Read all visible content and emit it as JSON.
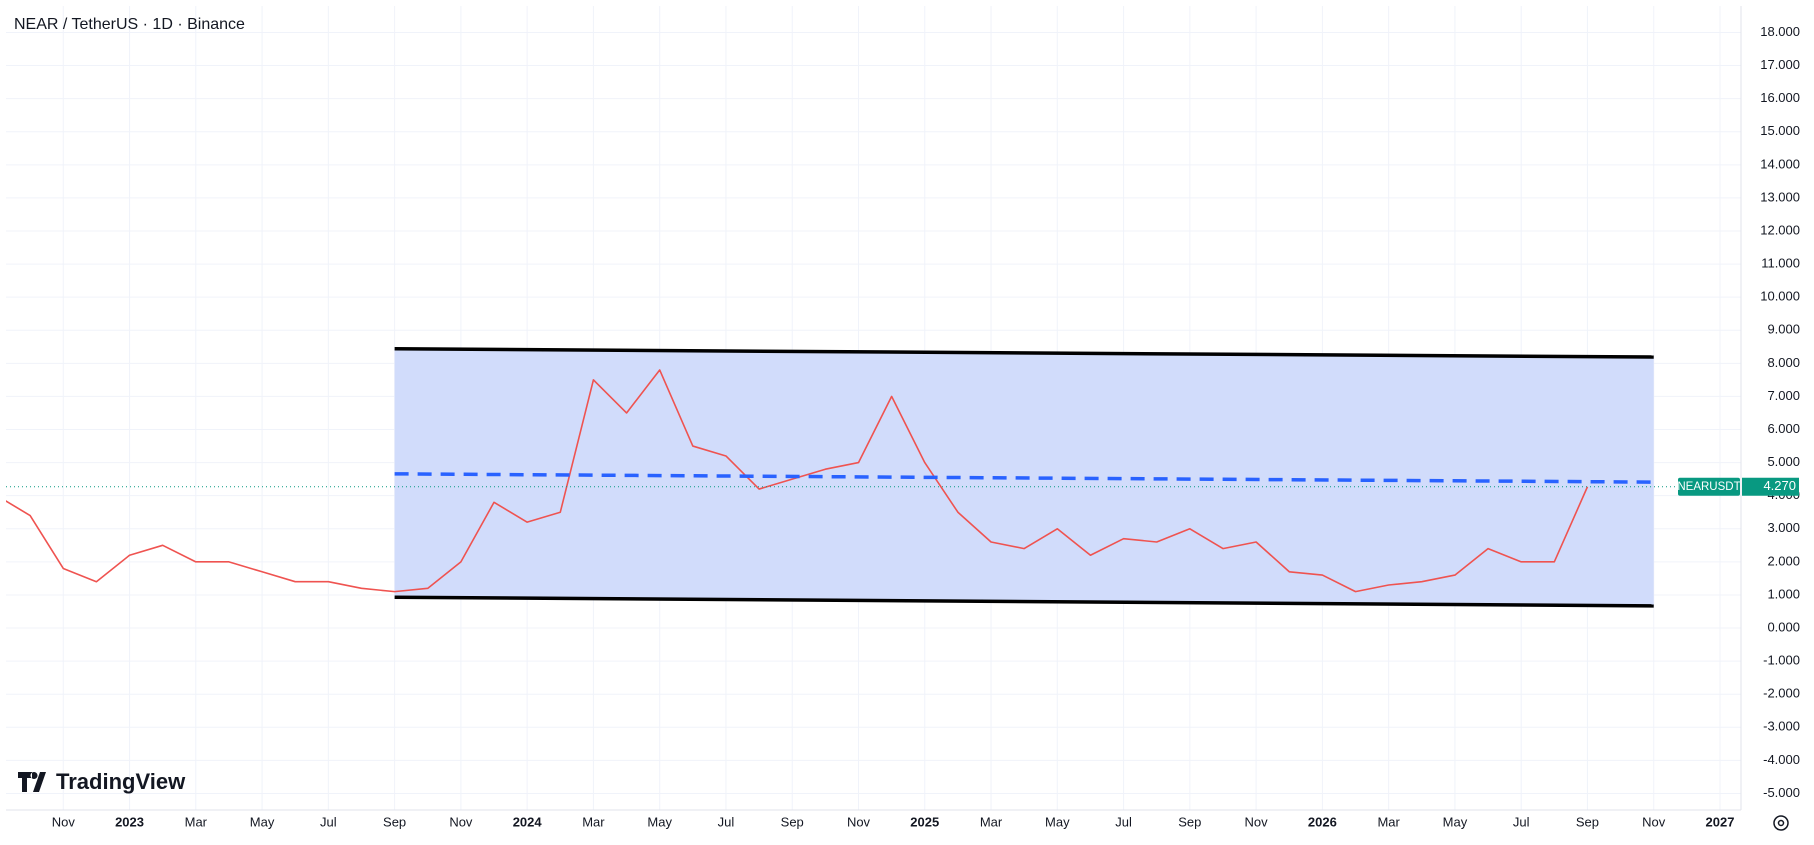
{
  "chart_data": {
    "type": "line",
    "title": "NEAR / TetherUS · 1D · Binance",
    "brand": "TradingView",
    "symbol": "NEARUSDT",
    "last_price": {
      "value": 4.27,
      "label": "4.270"
    },
    "x": [
      "2022-09",
      "2022-10",
      "2022-11",
      "2022-12",
      "2023-01",
      "2023-02",
      "2023-03",
      "2023-04",
      "2023-05",
      "2023-06",
      "2023-07",
      "2023-08",
      "2023-09",
      "2023-10",
      "2023-11",
      "2023-12",
      "2024-01",
      "2024-02",
      "2024-03",
      "2024-04",
      "2024-05",
      "2024-06",
      "2024-07",
      "2024-08",
      "2024-09",
      "2024-10",
      "2024-11",
      "2024-12",
      "2025-01",
      "2025-02",
      "2025-03",
      "2025-04",
      "2025-05",
      "2025-06",
      "2025-07",
      "2025-08",
      "2025-09",
      "2025-10",
      "2025-11",
      "2025-12",
      "2026-01",
      "2026-02",
      "2026-03",
      "2026-04",
      "2026-05",
      "2026-06",
      "2026-07",
      "2026-08",
      "2026-09"
    ],
    "series": [
      {
        "name": "NEARUSDT",
        "color": "#ef5350",
        "values": [
          4.0,
          3.4,
          1.8,
          1.4,
          2.2,
          2.5,
          2.0,
          2.0,
          1.7,
          1.4,
          1.4,
          1.2,
          1.1,
          1.2,
          2.0,
          3.8,
          3.2,
          3.5,
          7.5,
          6.5,
          7.8,
          5.5,
          5.2,
          4.2,
          4.5,
          4.8,
          5.0,
          7.0,
          5.0,
          3.5,
          2.6,
          2.4,
          3.0,
          2.2,
          2.7,
          2.6,
          3.0,
          2.4,
          2.6,
          1.7,
          1.6,
          1.1,
          1.3,
          1.4,
          1.6,
          2.4,
          2.0,
          2.0,
          4.27
        ]
      }
    ],
    "channel": {
      "x": [
        "2023-09",
        "2026-11"
      ],
      "upper": [
        8.44,
        8.19
      ],
      "middle": [
        4.66,
        4.41
      ],
      "lower": [
        0.93,
        0.67
      ],
      "fill": "#d1dcfb",
      "line_color": "#000000",
      "middle_color": "#2962ff"
    },
    "price_label_color": "#089981",
    "xlim": [
      "2022-09",
      "2027-01"
    ],
    "xticks": [
      {
        "value": "2022-11",
        "label": "Nov"
      },
      {
        "value": "2023-01",
        "label": "2023"
      },
      {
        "value": "2023-03",
        "label": "Mar"
      },
      {
        "value": "2023-05",
        "label": "May"
      },
      {
        "value": "2023-07",
        "label": "Jul"
      },
      {
        "value": "2023-09",
        "label": "Sep"
      },
      {
        "value": "2023-11",
        "label": "Nov"
      },
      {
        "value": "2024-01",
        "label": "2024"
      },
      {
        "value": "2024-03",
        "label": "Mar"
      },
      {
        "value": "2024-05",
        "label": "May"
      },
      {
        "value": "2024-07",
        "label": "Jul"
      },
      {
        "value": "2024-09",
        "label": "Sep"
      },
      {
        "value": "2024-11",
        "label": "Nov"
      },
      {
        "value": "2025-01",
        "label": "2025"
      },
      {
        "value": "2025-03",
        "label": "Mar"
      },
      {
        "value": "2025-05",
        "label": "May"
      },
      {
        "value": "2025-07",
        "label": "Jul"
      },
      {
        "value": "2025-09",
        "label": "Sep"
      },
      {
        "value": "2025-11",
        "label": "Nov"
      },
      {
        "value": "2026-01",
        "label": "2026"
      },
      {
        "value": "2026-03",
        "label": "Mar"
      },
      {
        "value": "2026-05",
        "label": "May"
      },
      {
        "value": "2026-07",
        "label": "Jul"
      },
      {
        "value": "2026-09",
        "label": "Sep"
      },
      {
        "value": "2026-11",
        "label": "Nov"
      },
      {
        "value": "2027-01",
        "label": "2027"
      }
    ],
    "ylim": [
      -5.5,
      18.8
    ],
    "yticks": [
      {
        "value": 18,
        "label": "18.000"
      },
      {
        "value": 17,
        "label": "17.000"
      },
      {
        "value": 16,
        "label": "16.000"
      },
      {
        "value": 15,
        "label": "15.000"
      },
      {
        "value": 14,
        "label": "14.000"
      },
      {
        "value": 13,
        "label": "13.000"
      },
      {
        "value": 12,
        "label": "12.000"
      },
      {
        "value": 11,
        "label": "11.000"
      },
      {
        "value": 10,
        "label": "10.000"
      },
      {
        "value": 9,
        "label": "9.000"
      },
      {
        "value": 8,
        "label": "8.000"
      },
      {
        "value": 7,
        "label": "7.000"
      },
      {
        "value": 6,
        "label": "6.000"
      },
      {
        "value": 5,
        "label": "5.000"
      },
      {
        "value": 4,
        "label": "4.000"
      },
      {
        "value": 3,
        "label": "3.000"
      },
      {
        "value": 2,
        "label": "2.000"
      },
      {
        "value": 1,
        "label": "1.000"
      },
      {
        "value": 0,
        "label": "0.000"
      },
      {
        "value": -1,
        "label": "-1.000"
      },
      {
        "value": -2,
        "label": "-2.000"
      },
      {
        "value": -3,
        "label": "-3.000"
      },
      {
        "value": -4,
        "label": "-4.000"
      },
      {
        "value": -5,
        "label": "-5.000"
      }
    ],
    "grid": true
  }
}
